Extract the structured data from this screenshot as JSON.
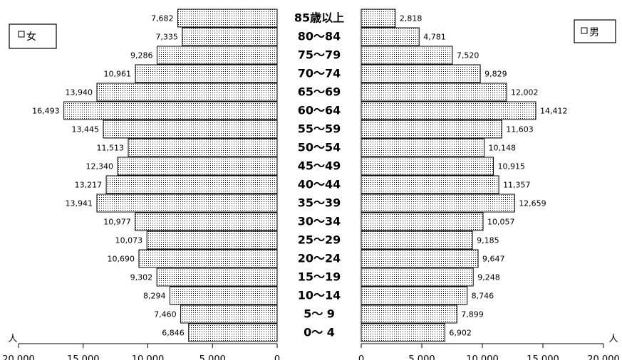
{
  "chart_data": {
    "type": "bar",
    "orientation": "horizontal-population-pyramid",
    "categories": [
      "85歳以上",
      "80～84",
      "75～79",
      "70～74",
      "65～69",
      "60～64",
      "55～59",
      "50～54",
      "45～49",
      "40～44",
      "35～39",
      "30～34",
      "25～29",
      "20～24",
      "15～19",
      "10～14",
      "5～ 9",
      "0～ 4"
    ],
    "value_labels": {
      "female": [
        "7,682",
        "7,335",
        "9,286",
        "10,961",
        "13,940",
        "16,493",
        "13,445",
        "11,513",
        "12,340",
        "13,217",
        "13,941",
        "10,977",
        "10,073",
        "10,690",
        "9,302",
        "8,294",
        "7,460",
        "6,846"
      ],
      "male": [
        "2,818",
        "4,781",
        "7,520",
        "9,829",
        "12,002",
        "14,412",
        "11,603",
        "10,148",
        "10,915",
        "11,357",
        "12,659",
        "10,057",
        "9,185",
        "9,647",
        "9,248",
        "8,746",
        "7,899",
        "6,902"
      ]
    },
    "series": [
      {
        "name": "女",
        "side": "left",
        "values": [
          7682,
          7335,
          9286,
          10961,
          13940,
          16493,
          13445,
          11513,
          12340,
          13217,
          13941,
          10977,
          10073,
          10690,
          9302,
          8294,
          7460,
          6846
        ]
      },
      {
        "name": "男",
        "side": "right",
        "values": [
          2818,
          4781,
          7520,
          9829,
          12002,
          14412,
          11603,
          10148,
          10915,
          11357,
          12659,
          10057,
          9185,
          9647,
          9248,
          8746,
          7899,
          6902
        ]
      }
    ],
    "xlim": [
      0,
      20000
    ],
    "x_ticks": [
      0,
      5000,
      10000,
      15000,
      20000
    ],
    "x_tick_labels": [
      "0",
      "5,000",
      "10,000",
      "15,000",
      "20,000"
    ],
    "unit_label": "人",
    "legend": [
      "女",
      "男"
    ],
    "legend_placement": "top-left and top-right boxes",
    "grid": false,
    "colors": {
      "bar_fill": "#ffffff",
      "bar_dots": "#000000",
      "bar_border": "#000000"
    }
  }
}
